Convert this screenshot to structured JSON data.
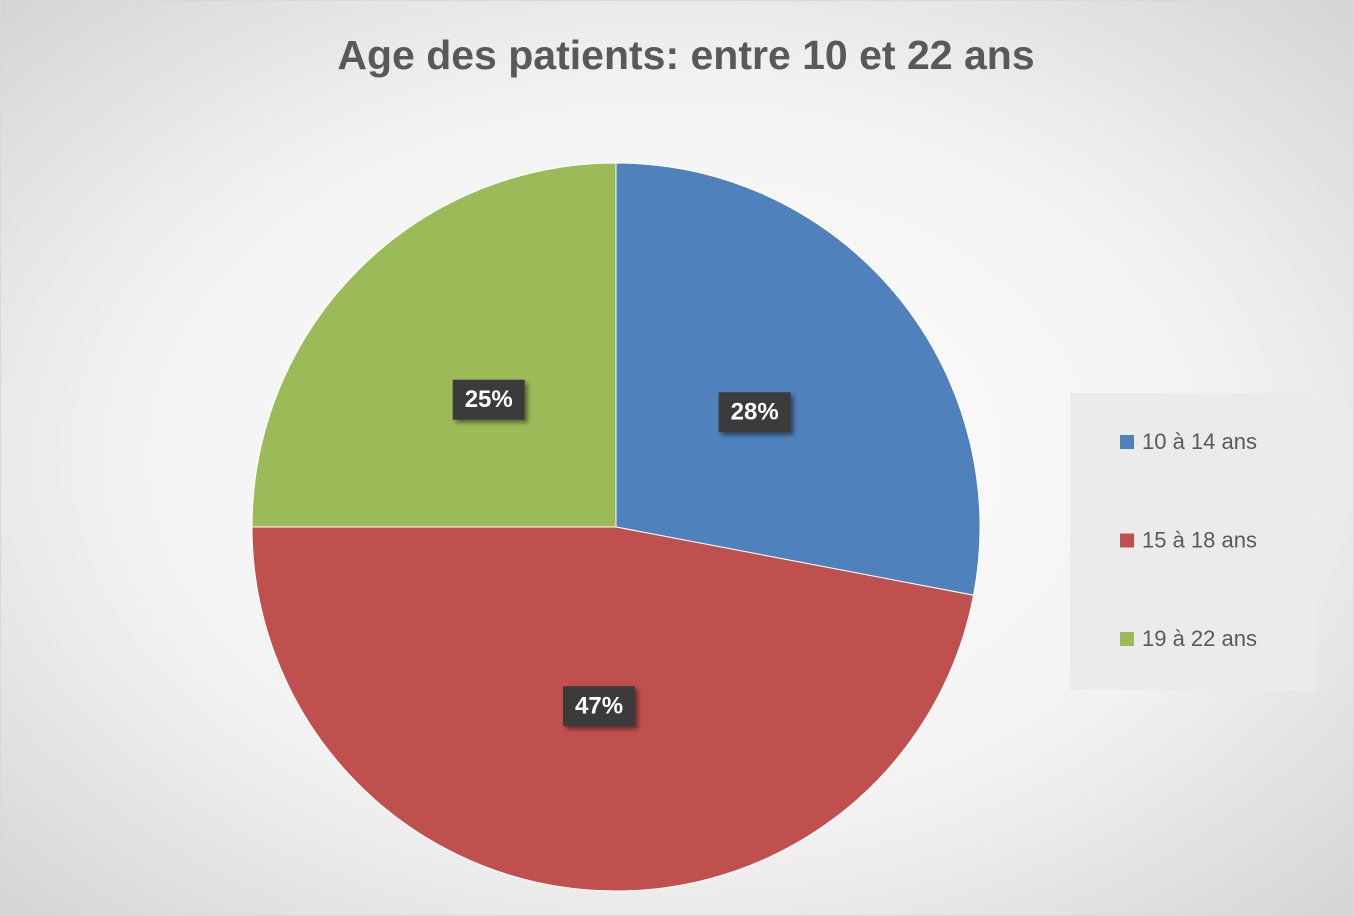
{
  "chart_data": {
    "type": "pie",
    "title": "Age des patients: entre 10 et 22 ans",
    "categories": [
      "10 à 14 ans",
      "15 à 18 ans",
      "19 à 22 ans"
    ],
    "values": [
      28,
      47,
      25
    ],
    "value_labels": [
      "28%",
      "47%",
      "25%"
    ],
    "colors": [
      "#4f81bd",
      "#c0504d",
      "#9bbb59"
    ],
    "legend": "right"
  }
}
